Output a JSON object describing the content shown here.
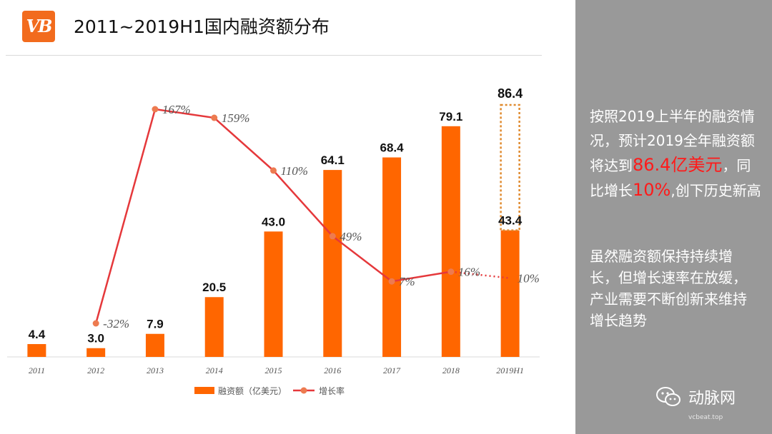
{
  "header": {
    "logo_text": "VB",
    "title": "2011~2019H1国内融资额分布"
  },
  "chart_data": {
    "type": "bar",
    "categories": [
      "2011",
      "2012",
      "2013",
      "2014",
      "2015",
      "2016",
      "2017",
      "2018",
      "2019H1"
    ],
    "series": [
      {
        "name": "融资额（亿美元）",
        "type": "bar",
        "color": "#ff6600",
        "values": [
          4.4,
          3.0,
          7.9,
          20.5,
          43.0,
          64.1,
          68.4,
          79.1,
          43.4
        ],
        "labels": [
          "4.4",
          "3.0",
          "7.9",
          "20.5",
          "43.0",
          "64.1",
          "68.4",
          "79.1",
          "43.4"
        ]
      },
      {
        "name": "增长率",
        "type": "line",
        "color": "#e5383b",
        "values": [
          null,
          -32,
          167,
          159,
          110,
          49,
          7,
          16,
          10
        ],
        "labels": [
          "",
          "-32%",
          "167%",
          "159%",
          "110%",
          "49%",
          "7%",
          "16%",
          "10%"
        ]
      }
    ],
    "projection": {
      "category": "2019H1",
      "value": 86.4,
      "label": "86.4",
      "style": "dashed-outline"
    },
    "legend_position": "bottom",
    "xlabel": "",
    "ylabel": ""
  },
  "sidebar": {
    "note_prefix": "按照2019上半年的融资情况，预计2019全年融资额将达到",
    "note_amount": "86.4亿美元",
    "note_mid": "，同比增长",
    "note_growth": "10%",
    "note_suffix": ",创下历史新高",
    "note2": "虽然融资额保持持续增长，但增长速率在放缓，产业需要不断创新来维持增长趋势",
    "watermark": "动脉网",
    "watermark_sub": "vcbeat.top"
  }
}
